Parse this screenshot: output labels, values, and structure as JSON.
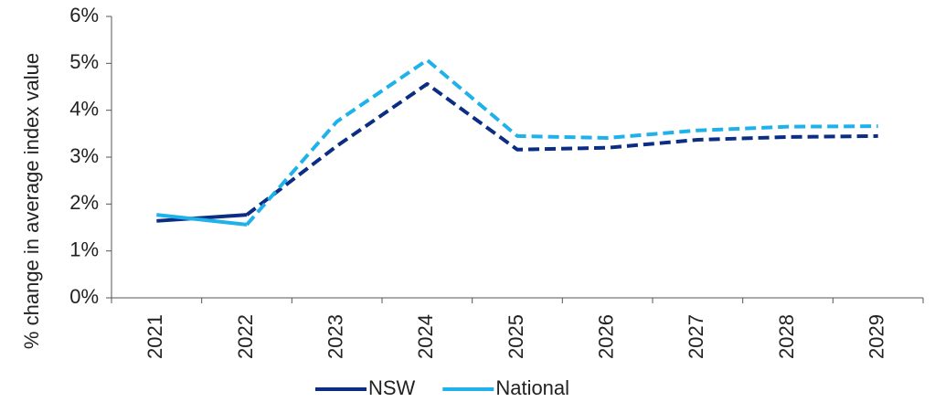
{
  "chart_data": {
    "type": "line",
    "y_label": "% change in average index value",
    "categories": [
      "2021",
      "2022",
      "2023",
      "2024",
      "2025",
      "2026",
      "2027",
      "2028",
      "2029"
    ],
    "series": [
      {
        "name": "NSW",
        "color": "#0b2d84",
        "values": [
          1.64,
          1.77,
          3.24,
          4.56,
          3.16,
          3.2,
          3.37,
          3.43,
          3.45
        ]
      },
      {
        "name": "National",
        "color": "#1fb1ea",
        "values": [
          1.77,
          1.56,
          3.76,
          5.07,
          3.45,
          3.41,
          3.57,
          3.65,
          3.66
        ]
      }
    ],
    "dashed_from": "2022",
    "ylim": [
      0,
      6
    ],
    "yticks": [
      {
        "value": 0,
        "label": "0%"
      },
      {
        "value": 1,
        "label": "1%"
      },
      {
        "value": 2,
        "label": "2%"
      },
      {
        "value": 3,
        "label": "3%"
      },
      {
        "value": 4,
        "label": "4%"
      },
      {
        "value": 5,
        "label": "5%"
      },
      {
        "value": 6,
        "label": "6%"
      }
    ],
    "grid": false,
    "legend": "bottom"
  }
}
